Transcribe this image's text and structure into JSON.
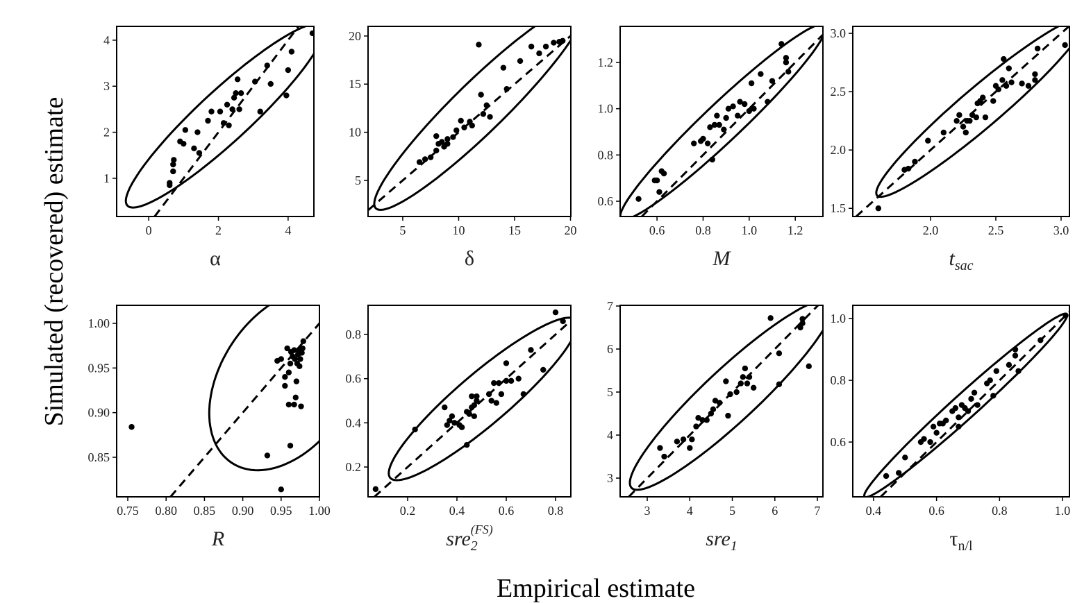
{
  "ylabel": "Simulated (recovered) estimate",
  "xlabel": "Empirical estimate",
  "chart_data": [
    {
      "type": "scatter",
      "xlabel": {
        "base": "α"
      },
      "italic": false,
      "color": "#000000",
      "identity_line": true,
      "ellipse": true,
      "xlim": [
        -0.92,
        4.74
      ],
      "ylim": [
        0.17,
        4.3
      ],
      "xticks": [
        0,
        2,
        4
      ],
      "yticks": [
        1,
        2,
        3,
        4
      ],
      "x": [
        0.6,
        0.6,
        0.7,
        0.7,
        0.72,
        0.9,
        1.0,
        1.05,
        1.3,
        1.4,
        1.45,
        1.7,
        1.8,
        2.05,
        2.15,
        2.25,
        2.3,
        2.4,
        2.45,
        2.5,
        2.55,
        2.6,
        2.65,
        3.05,
        3.2,
        3.4,
        3.5,
        3.95,
        4.0,
        4.1,
        4.7
      ],
      "values": [
        0.9,
        0.85,
        1.15,
        1.3,
        1.4,
        1.8,
        1.75,
        2.05,
        1.65,
        2.0,
        1.55,
        2.25,
        2.45,
        2.45,
        2.2,
        2.6,
        2.15,
        2.5,
        2.75,
        2.85,
        3.15,
        2.5,
        2.85,
        3.1,
        2.45,
        3.45,
        3.05,
        2.8,
        3.35,
        3.75,
        4.15
      ]
    },
    {
      "type": "scatter",
      "xlabel": {
        "base": "δ"
      },
      "italic": false,
      "color": "#000000",
      "identity_line": true,
      "ellipse": true,
      "xlim": [
        1.9,
        20.03
      ],
      "ylim": [
        1.25,
        21.0
      ],
      "xticks": [
        5,
        10,
        15,
        20
      ],
      "yticks": [
        5,
        10,
        15,
        20
      ],
      "x": [
        6.5,
        7,
        7.5,
        8,
        8,
        8.2,
        8.5,
        8.7,
        9,
        9,
        9.5,
        9.8,
        10.2,
        10.5,
        11,
        11.2,
        11.8,
        12,
        12.2,
        12.5,
        12.8,
        14,
        14.3,
        15.5,
        16.5,
        17.2,
        17.8,
        18.5,
        19,
        19.3
      ],
      "values": [
        6.9,
        7.2,
        7.4,
        8.1,
        9.6,
        8.8,
        9.0,
        8.5,
        8.8,
        9.3,
        9.5,
        10.2,
        11.2,
        10.5,
        11.1,
        10.7,
        19.1,
        13.9,
        11.9,
        12.8,
        11.6,
        16.7,
        14.5,
        17.4,
        18.9,
        18.2,
        18.9,
        19.3,
        19.4,
        19.5
      ]
    },
    {
      "type": "scatter",
      "xlabel": {
        "base": "M"
      },
      "italic": true,
      "color": "#000000",
      "identity_line": true,
      "ellipse": true,
      "xlim": [
        0.44,
        1.32
      ],
      "ylim": [
        0.534,
        1.356
      ],
      "xticks": [
        0.6,
        0.8,
        {
          "value": 1.0,
          "label": "1.0"
        },
        1.2
      ],
      "yticks": [
        0.6,
        0.8,
        {
          "value": 1.0,
          "label": "1.0"
        },
        1.2
      ],
      "x": [
        0.52,
        0.59,
        0.6,
        0.61,
        0.62,
        0.63,
        0.76,
        0.79,
        0.8,
        0.82,
        0.83,
        0.84,
        0.85,
        0.86,
        0.87,
        0.89,
        0.9,
        0.91,
        0.93,
        0.95,
        0.96,
        0.98,
        1.0,
        1.01,
        1.02,
        1.05,
        1.08,
        1.1,
        1.14,
        1.16,
        1.16,
        1.17
      ],
      "values": [
        0.61,
        0.69,
        0.69,
        0.64,
        0.73,
        0.72,
        0.85,
        0.86,
        0.87,
        0.85,
        0.92,
        0.78,
        0.93,
        0.97,
        0.93,
        0.91,
        0.96,
        1.0,
        1.01,
        0.97,
        1.03,
        1.02,
        0.99,
        1.11,
        1.0,
        1.15,
        1.03,
        1.12,
        1.28,
        1.22,
        1.2,
        1.16
      ]
    },
    {
      "type": "scatter",
      "xlabel": {
        "base": "t",
        "sub": "sac"
      },
      "italic": true,
      "color": "#000000",
      "identity_line": true,
      "ellipse": true,
      "xlim": [
        1.404,
        3.064
      ],
      "ylim": [
        1.43,
        3.06
      ],
      "xticks": [
        {
          "value": 2.0,
          "label": "2.0"
        },
        2.5,
        {
          "value": 3.0,
          "label": "3.0"
        }
      ],
      "yticks": [
        1.5,
        {
          "value": 2.0,
          "label": "2.0"
        },
        2.5,
        {
          "value": 3.0,
          "label": "3.0"
        }
      ],
      "x": [
        1.6,
        1.8,
        1.83,
        1.88,
        1.98,
        2.1,
        2.2,
        2.22,
        2.25,
        2.27,
        2.28,
        2.3,
        2.32,
        2.35,
        2.36,
        2.38,
        2.4,
        2.42,
        2.48,
        2.5,
        2.52,
        2.55,
        2.56,
        2.58,
        2.6,
        2.62,
        2.7,
        2.75,
        2.8,
        2.8,
        2.82,
        3.03
      ],
      "values": [
        1.5,
        1.83,
        1.84,
        1.9,
        2.08,
        2.15,
        2.25,
        2.3,
        2.2,
        2.15,
        2.25,
        2.25,
        2.3,
        2.28,
        2.4,
        2.42,
        2.45,
        2.28,
        2.42,
        2.55,
        2.52,
        2.6,
        2.78,
        2.55,
        2.7,
        2.58,
        2.57,
        2.55,
        2.6,
        2.65,
        2.87,
        2.9
      ]
    },
    {
      "type": "scatter",
      "xlabel": {
        "base": "R"
      },
      "italic": true,
      "color": "#000000",
      "identity_line": true,
      "ellipse": true,
      "xlim": [
        0.7355,
        1.0
      ],
      "ylim": [
        0.8057,
        1.0202
      ],
      "xticks": [
        0.75,
        {
          "value": 0.8,
          "label": "0.80"
        },
        0.85,
        {
          "value": 0.9,
          "label": "0.90"
        },
        0.95,
        {
          "value": 1.0,
          "label": "1.00"
        }
      ],
      "yticks": [
        0.85,
        {
          "value": 0.9,
          "label": "0.90"
        },
        0.95,
        {
          "value": 1.0,
          "label": "1.00"
        }
      ],
      "x": [
        0.755,
        0.932,
        0.95,
        0.962,
        0.945,
        0.95,
        0.955,
        0.955,
        0.958,
        0.96,
        0.96,
        0.962,
        0.963,
        0.965,
        0.967,
        0.967,
        0.968,
        0.969,
        0.97,
        0.971,
        0.972,
        0.973,
        0.974,
        0.975,
        0.976,
        0.977,
        0.978,
        0.979
      ],
      "values": [
        0.884,
        0.852,
        0.814,
        0.863,
        0.958,
        0.96,
        0.94,
        0.93,
        0.972,
        0.945,
        0.909,
        0.955,
        0.968,
        0.963,
        0.97,
        0.909,
        0.96,
        0.917,
        0.935,
        0.955,
        0.965,
        0.97,
        0.952,
        0.96,
        0.907,
        0.967,
        0.972,
        0.98
      ]
    },
    {
      "type": "scatter",
      "xlabel": {
        "base": "sre",
        "sub": "2",
        "sup": "(FS)"
      },
      "italic": true,
      "color": "#000000",
      "identity_line": true,
      "ellipse": true,
      "xlim": [
        0.0394,
        0.862
      ],
      "ylim": [
        0.065,
        0.932
      ],
      "xticks": [
        0.2,
        0.4,
        0.6,
        0.8
      ],
      "yticks": [
        0.2,
        0.4,
        0.6,
        0.8
      ],
      "x": [
        0.07,
        0.23,
        0.35,
        0.36,
        0.37,
        0.38,
        0.39,
        0.41,
        0.42,
        0.44,
        0.44,
        0.45,
        0.46,
        0.46,
        0.47,
        0.47,
        0.48,
        0.48,
        0.53,
        0.54,
        0.55,
        0.56,
        0.57,
        0.58,
        0.6,
        0.6,
        0.62,
        0.65,
        0.67,
        0.7,
        0.75,
        0.8,
        0.83
      ],
      "values": [
        0.1,
        0.37,
        0.47,
        0.39,
        0.41,
        0.43,
        0.4,
        0.39,
        0.38,
        0.3,
        0.45,
        0.44,
        0.52,
        0.47,
        0.48,
        0.43,
        0.52,
        0.5,
        0.53,
        0.5,
        0.58,
        0.49,
        0.58,
        0.53,
        0.59,
        0.67,
        0.59,
        0.6,
        0.53,
        0.73,
        0.64,
        0.9,
        0.86
      ]
    },
    {
      "type": "scatter",
      "xlabel": {
        "base": "sre",
        "sub": "1"
      },
      "italic": true,
      "color": "#000000",
      "identity_line": true,
      "ellipse": true,
      "xlim": [
        2.363,
        7.13
      ],
      "ylim": [
        2.565,
        7.016
      ],
      "xticks": [
        3,
        4,
        5,
        6,
        7
      ],
      "yticks": [
        3,
        4,
        5,
        6,
        7
      ],
      "x": [
        3.3,
        3.4,
        3.7,
        3.85,
        4.0,
        4.05,
        4.15,
        4.2,
        4.3,
        4.4,
        4.5,
        4.55,
        4.6,
        4.7,
        4.85,
        4.9,
        4.95,
        5.1,
        5.2,
        5.25,
        5.3,
        5.35,
        5.4,
        5.5,
        5.9,
        6.1,
        6.1,
        6.6,
        6.65,
        6.65,
        6.8
      ],
      "values": [
        3.7,
        3.5,
        3.85,
        3.9,
        3.7,
        3.9,
        4.2,
        4.4,
        4.35,
        4.35,
        4.5,
        4.6,
        4.8,
        4.75,
        5.25,
        4.45,
        4.95,
        5.0,
        5.2,
        5.35,
        5.55,
        5.2,
        5.35,
        5.1,
        6.72,
        5.9,
        5.18,
        6.5,
        6.6,
        6.7,
        5.6
      ]
    },
    {
      "type": "scatter",
      "xlabel": {
        "base": "τ",
        "sub": "n/l"
      },
      "italic": false,
      "color": "#000000",
      "identity_line": true,
      "ellipse": true,
      "xlim": [
        0.334,
        1.022
      ],
      "ylim": [
        0.4225,
        1.043
      ],
      "xticks": [
        0.4,
        0.6,
        0.8,
        {
          "value": 1.0,
          "label": "1.0"
        }
      ],
      "yticks": [
        0.6,
        0.8,
        {
          "value": 1.0,
          "label": "1.0"
        }
      ],
      "x": [
        0.44,
        0.48,
        0.5,
        0.55,
        0.56,
        0.58,
        0.59,
        0.6,
        0.61,
        0.62,
        0.63,
        0.65,
        0.66,
        0.67,
        0.67,
        0.68,
        0.69,
        0.7,
        0.71,
        0.72,
        0.73,
        0.76,
        0.77,
        0.78,
        0.79,
        0.83,
        0.85,
        0.85,
        0.86,
        0.93,
        1.01
      ],
      "values": [
        0.49,
        0.5,
        0.55,
        0.6,
        0.61,
        0.6,
        0.65,
        0.63,
        0.66,
        0.66,
        0.67,
        0.7,
        0.71,
        0.65,
        0.68,
        0.72,
        0.71,
        0.7,
        0.74,
        0.76,
        0.72,
        0.79,
        0.8,
        0.75,
        0.83,
        0.85,
        0.88,
        0.9,
        0.83,
        0.93,
        1.01
      ]
    }
  ]
}
